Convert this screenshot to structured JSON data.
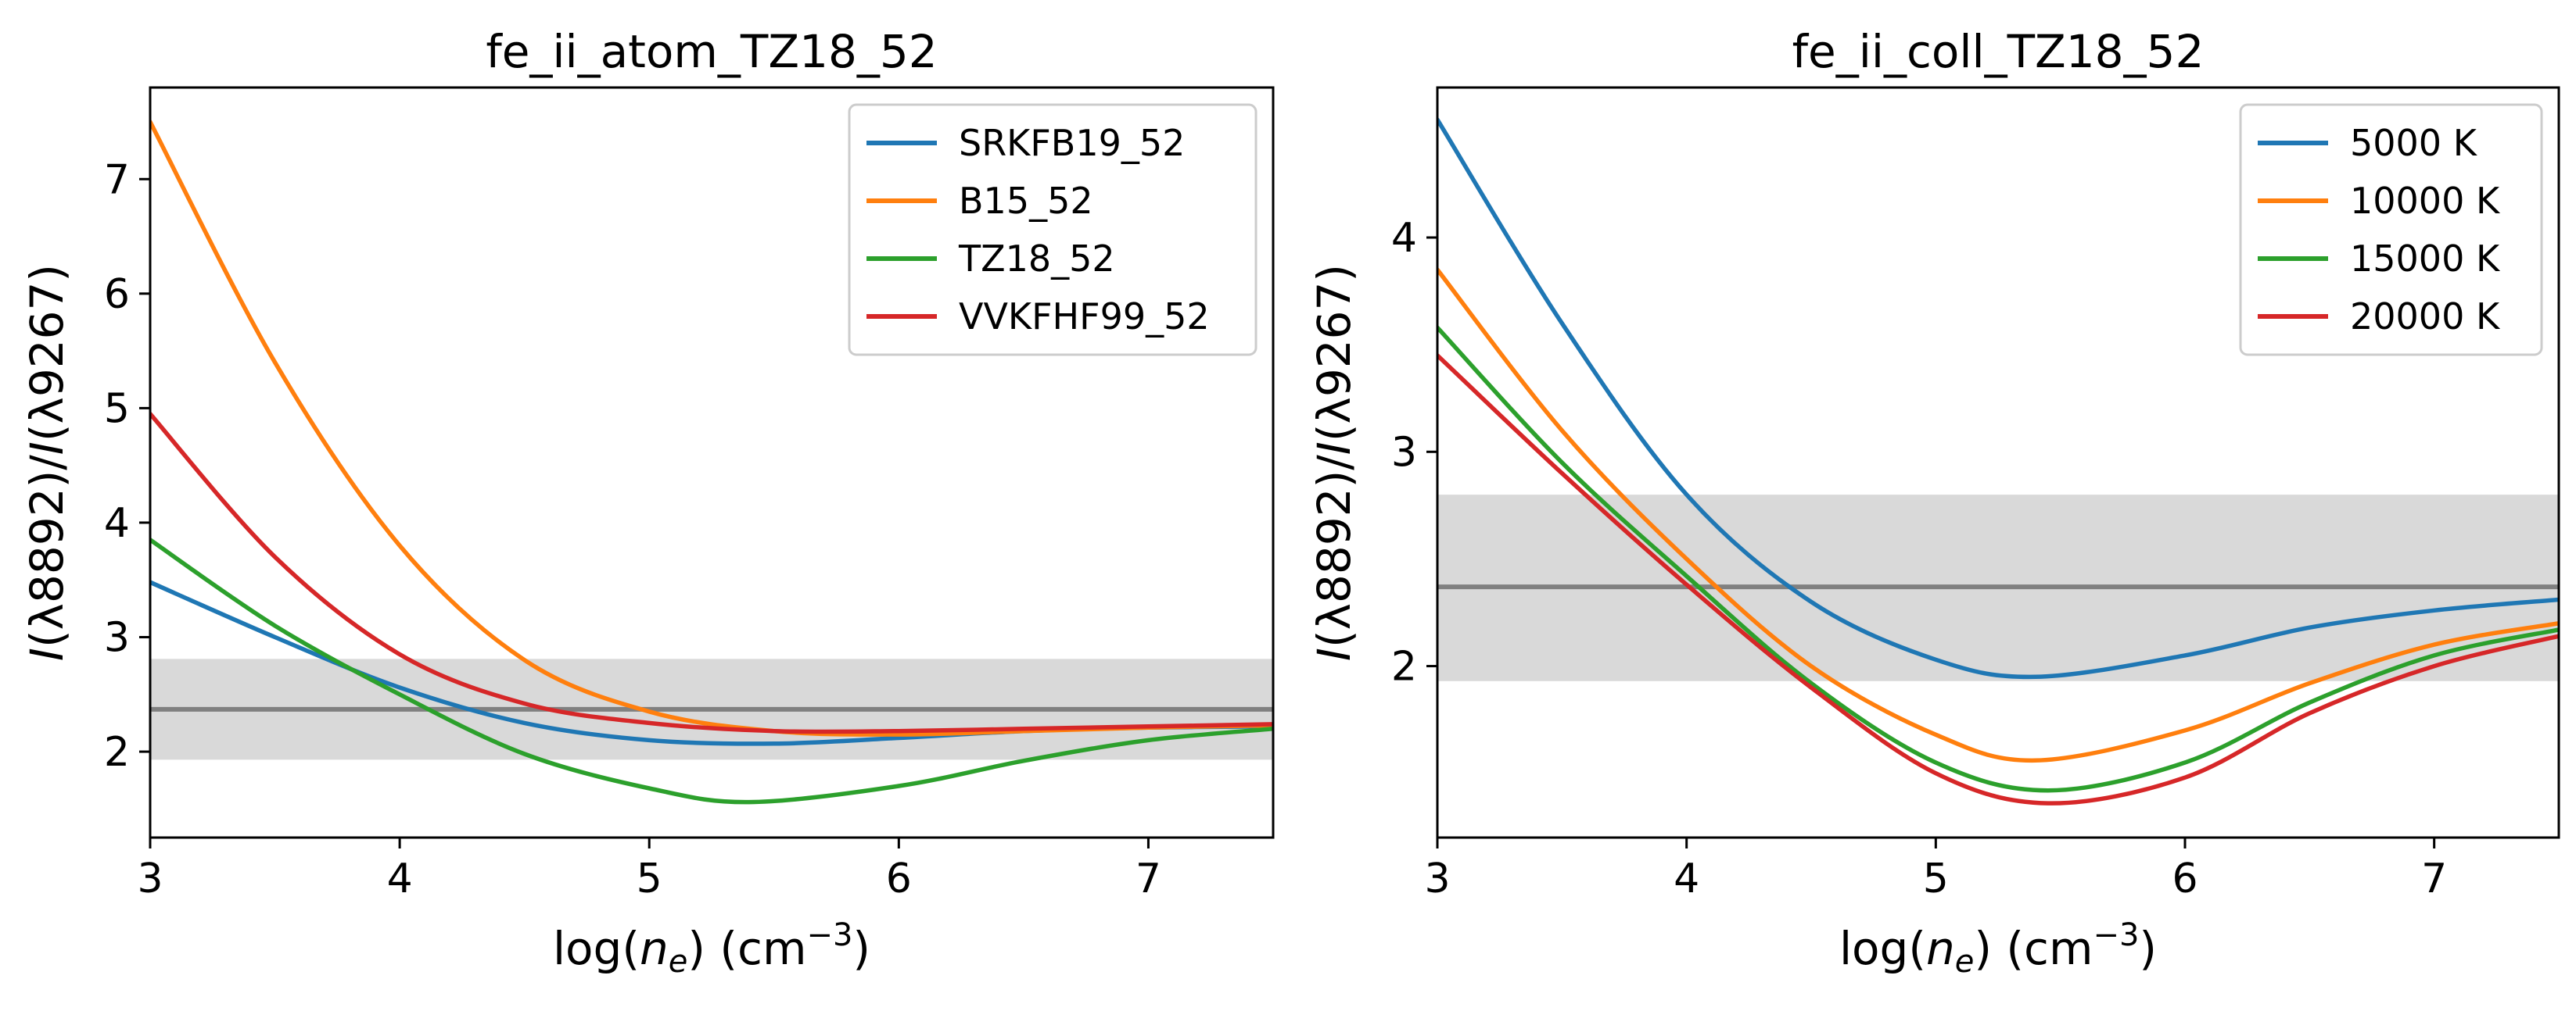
{
  "chart_data": [
    {
      "type": "line",
      "title": "fe_ii_atom_TZ18_52",
      "xlabel": {
        "prefix": "log(",
        "var": "n",
        "sub": "e",
        "suffix": ") (cm",
        "sup": "−3",
        "close": ")"
      },
      "ylabel": {
        "p1": "I",
        "p2": "(λ8892)/",
        "p3": "I",
        "p4": "(λ9267)"
      },
      "xlim": [
        3,
        7.5
      ],
      "ylim": [
        1.25,
        7.8
      ],
      "xticks": [
        3,
        4,
        5,
        6,
        7
      ],
      "yticks": [
        2,
        3,
        4,
        5,
        6,
        7
      ],
      "observed": {
        "value": 2.37,
        "band": [
          1.93,
          2.81
        ]
      },
      "legend_position": "upper right",
      "series": [
        {
          "name": "SRKFB19_52",
          "color": "#1f77b4",
          "x": [
            3.0,
            3.5,
            4.0,
            4.5,
            5.0,
            5.5,
            6.0,
            6.5,
            7.0,
            7.5
          ],
          "y": [
            3.48,
            3.0,
            2.56,
            2.25,
            2.1,
            2.07,
            2.12,
            2.18,
            2.21,
            2.22
          ]
        },
        {
          "name": "B15_52",
          "color": "#ff7f0e",
          "x": [
            3.0,
            3.5,
            4.0,
            4.5,
            5.0,
            5.5,
            6.0,
            6.5,
            7.0,
            7.5
          ],
          "y": [
            7.5,
            5.4,
            3.8,
            2.8,
            2.35,
            2.18,
            2.15,
            2.18,
            2.21,
            2.23
          ]
        },
        {
          "name": "TZ18_52",
          "color": "#2ca02c",
          "x": [
            3.0,
            3.5,
            4.0,
            4.5,
            5.0,
            5.4,
            6.0,
            6.5,
            7.0,
            7.5
          ],
          "y": [
            3.85,
            3.1,
            2.5,
            1.98,
            1.68,
            1.56,
            1.7,
            1.92,
            2.1,
            2.2
          ]
        },
        {
          "name": "VVKFHF99_52",
          "color": "#d62728",
          "x": [
            3.0,
            3.5,
            4.0,
            4.5,
            5.0,
            5.5,
            6.0,
            6.5,
            7.0,
            7.5
          ],
          "y": [
            4.95,
            3.7,
            2.85,
            2.42,
            2.25,
            2.18,
            2.18,
            2.2,
            2.22,
            2.24
          ]
        }
      ]
    },
    {
      "type": "line",
      "title": "fe_ii_coll_TZ18_52",
      "xlabel": {
        "prefix": "log(",
        "var": "n",
        "sub": "e",
        "suffix": ") (cm",
        "sup": "−3",
        "close": ")"
      },
      "ylabel": {
        "p1": "I",
        "p2": "(λ8892)/",
        "p3": "I",
        "p4": "(λ9267)"
      },
      "xlim": [
        3,
        7.5
      ],
      "ylim": [
        1.2,
        4.7
      ],
      "xticks": [
        3,
        4,
        5,
        6,
        7
      ],
      "yticks": [
        2,
        3,
        4
      ],
      "observed": {
        "value": 2.37,
        "band": [
          1.93,
          2.8
        ]
      },
      "legend_position": "upper right",
      "series": [
        {
          "name": "5000 K",
          "color": "#1f77b4",
          "x": [
            3.0,
            3.5,
            4.0,
            4.5,
            5.0,
            5.4,
            6.0,
            6.5,
            7.0,
            7.5
          ],
          "y": [
            4.55,
            3.6,
            2.8,
            2.3,
            2.03,
            1.95,
            2.05,
            2.18,
            2.26,
            2.31
          ]
        },
        {
          "name": "10000 K",
          "color": "#ff7f0e",
          "x": [
            3.0,
            3.5,
            4.0,
            4.5,
            5.0,
            5.4,
            6.0,
            6.5,
            7.0,
            7.5
          ],
          "y": [
            3.85,
            3.1,
            2.5,
            2.0,
            1.68,
            1.56,
            1.7,
            1.92,
            2.1,
            2.2
          ]
        },
        {
          "name": "15000 K",
          "color": "#2ca02c",
          "x": [
            3.0,
            3.5,
            4.0,
            4.5,
            5.0,
            5.45,
            6.0,
            6.5,
            7.0,
            7.5
          ],
          "y": [
            3.58,
            2.95,
            2.42,
            1.92,
            1.55,
            1.42,
            1.55,
            1.83,
            2.05,
            2.17
          ]
        },
        {
          "name": "20000 K",
          "color": "#d62728",
          "x": [
            3.0,
            3.5,
            4.0,
            4.5,
            5.0,
            5.45,
            6.0,
            6.5,
            7.0,
            7.5
          ],
          "y": [
            3.45,
            2.9,
            2.38,
            1.9,
            1.5,
            1.36,
            1.48,
            1.78,
            2.0,
            2.14
          ]
        }
      ]
    }
  ]
}
